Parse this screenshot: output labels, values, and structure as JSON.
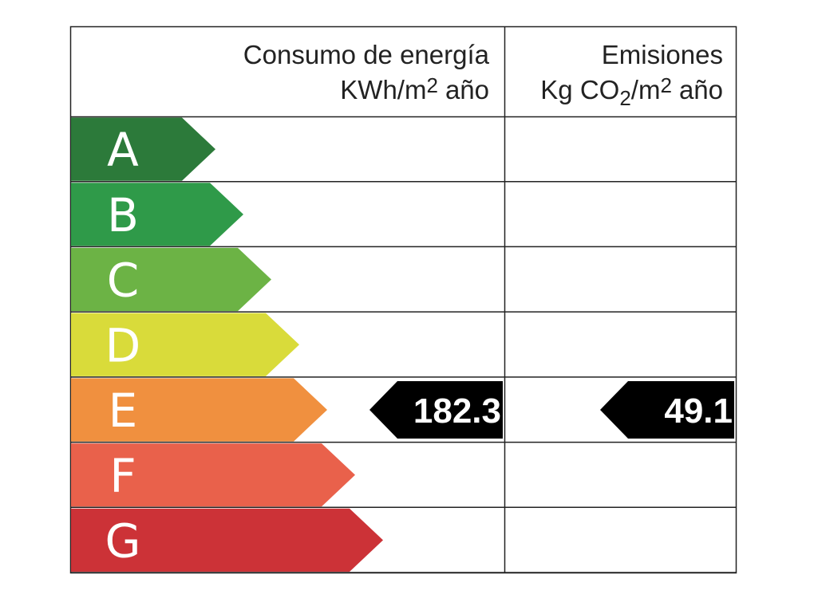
{
  "header": {
    "energy": {
      "line1": "Consumo de energía",
      "unit_a": "KWh/m",
      "unit_sup": "2",
      "unit_b": "año"
    },
    "emissions": {
      "line1": "Emisiones",
      "unit_a": "Kg CO",
      "unit_sub": "2",
      "unit_c": "/m",
      "unit_sup": "2",
      "unit_b": "año"
    }
  },
  "rows": [
    {
      "letter": "A",
      "color": "#2c7a3a"
    },
    {
      "letter": "B",
      "color": "#2f9a49"
    },
    {
      "letter": "C",
      "color": "#6cb345"
    },
    {
      "letter": "D",
      "color": "#d9db3a"
    },
    {
      "letter": "E",
      "color": "#f0903f",
      "energy": 182.3,
      "emissions": 49.1
    },
    {
      "letter": "F",
      "color": "#e9614b"
    },
    {
      "letter": "G",
      "color": "#cc3237"
    }
  ]
}
